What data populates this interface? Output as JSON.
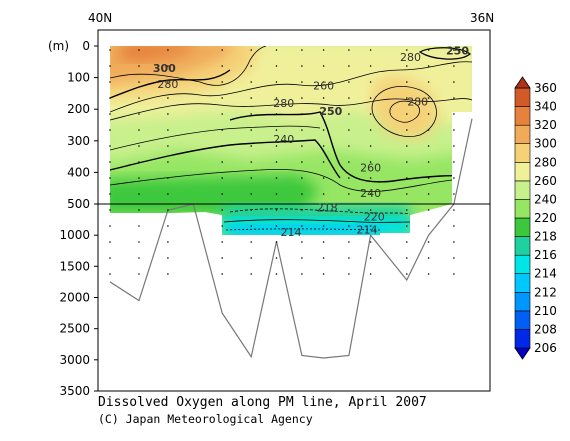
{
  "chart_data": {
    "type": "heatmap",
    "title": "Dissolved Oxygen along PM line, April 2007",
    "credit": "(C) Japan Meteorological Agency",
    "top_left_label": "40N",
    "top_right_label": "36N",
    "ylabel": "(m)",
    "y_ticks_upper": [
      0,
      100,
      200,
      300,
      400,
      500
    ],
    "y_ticks_lower": [
      1000,
      1500,
      2000,
      2500,
      3000,
      3500
    ],
    "upper_ylim": [
      0,
      500
    ],
    "lower_ylim": [
      500,
      3500
    ],
    "colorbar_levels": [
      206,
      208,
      210,
      212,
      214,
      216,
      218,
      220,
      240,
      260,
      280,
      300,
      320,
      340,
      360
    ],
    "colorbar_colors": [
      "#0000c8",
      "#0028e6",
      "#0060f5",
      "#0096ff",
      "#00c8ff",
      "#00e6e6",
      "#1ed2a0",
      "#3cc83c",
      "#96e664",
      "#c8f08c",
      "#f0f09b",
      "#f5d278",
      "#f0aa5a",
      "#e6823c",
      "#d25a28",
      "#b43214"
    ],
    "contour_labels": [
      {
        "text": "300",
        "x": 0.15,
        "depth": 70,
        "bold": true
      },
      {
        "text": "280",
        "x": 0.16,
        "depth": 120
      },
      {
        "text": "260",
        "x": 0.59,
        "depth": 125
      },
      {
        "text": "280",
        "x": 0.48,
        "depth": 180
      },
      {
        "text": "250",
        "x": 0.61,
        "depth": 205,
        "bold": true
      },
      {
        "text": "280",
        "x": 0.85,
        "depth": 175
      },
      {
        "text": "280",
        "x": 0.83,
        "depth": 35
      },
      {
        "text": "250",
        "x": 0.96,
        "depth": 15,
        "bold": true
      },
      {
        "text": "240",
        "x": 0.48,
        "depth": 295
      },
      {
        "text": "260",
        "x": 0.72,
        "depth": 385
      },
      {
        "text": "240",
        "x": 0.72,
        "depth": 465
      },
      {
        "text": "218",
        "x": 0.6,
        "depth": 560
      },
      {
        "text": "220",
        "x": 0.73,
        "depth": 700
      },
      {
        "text": "214",
        "x": 0.5,
        "depth": 950
      },
      {
        "text": "214",
        "x": 0.71,
        "depth": 910
      }
    ],
    "bottom_depth": [
      {
        "x": 0.0,
        "depth": 1750
      },
      {
        "x": 0.08,
        "depth": 2050
      },
      {
        "x": 0.16,
        "depth": 600
      },
      {
        "x": 0.23,
        "depth": 500
      },
      {
        "x": 0.31,
        "depth": 2250
      },
      {
        "x": 0.39,
        "depth": 2950
      },
      {
        "x": 0.46,
        "depth": 1100
      },
      {
        "x": 0.53,
        "depth": 2930
      },
      {
        "x": 0.59,
        "depth": 2970
      },
      {
        "x": 0.66,
        "depth": 2930
      },
      {
        "x": 0.72,
        "depth": 1000
      },
      {
        "x": 0.82,
        "depth": 1720
      },
      {
        "x": 0.88,
        "depth": 1000
      },
      {
        "x": 0.95,
        "depth": 500
      },
      {
        "x": 1.0,
        "depth": 230
      }
    ]
  }
}
